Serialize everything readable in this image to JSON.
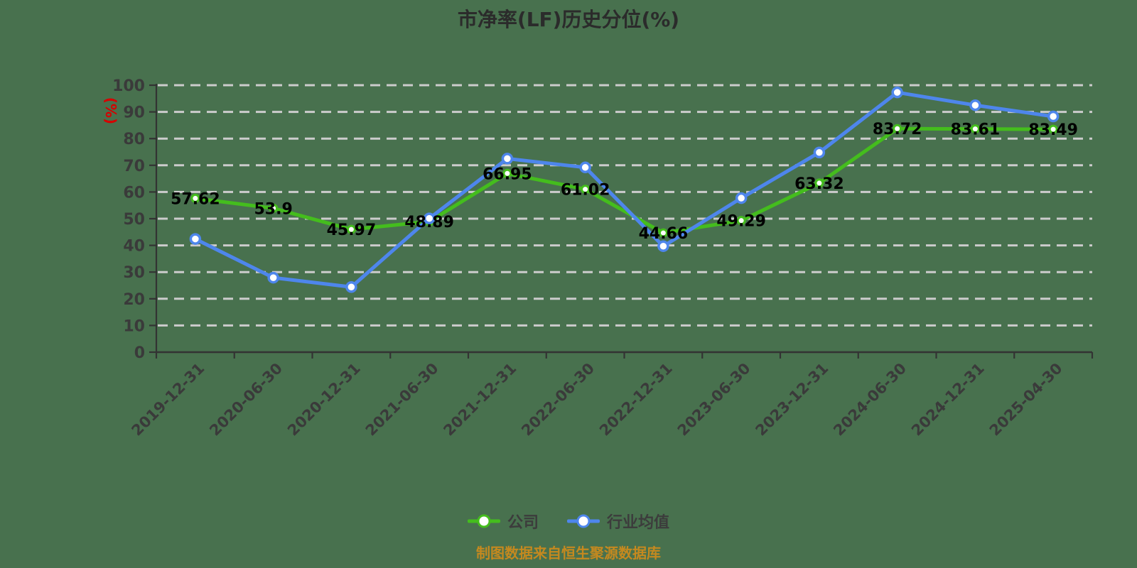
{
  "title": "市净率(LF)历史分位(%)",
  "y_axis_name": "(%)",
  "footer": "制图数据来自恒生聚源数据库",
  "colors": {
    "background": "#48714e",
    "company_green": "#44bd1d",
    "industry_blue": "#4e86ec",
    "gridline": "#cccccc",
    "axis": "#333333",
    "tick_label": "#3a3a3a",
    "data_label": "#000000",
    "title_text": "#2b2b2b",
    "y_axis_name_red": "#d60000",
    "footer_text": "#c5891f",
    "marker_fill": "#ffffff"
  },
  "chart_data": {
    "type": "line",
    "title": "市净率(LF)历史分位(%)",
    "ylabel": "(%)",
    "ylim": [
      0,
      100
    ],
    "y_ticks": [
      0,
      10,
      20,
      30,
      40,
      50,
      60,
      70,
      80,
      90,
      100
    ],
    "grid": "horizontal-dashed",
    "legend_position": "bottom-center",
    "categories": [
      "2019-12-31",
      "2020-06-30",
      "2020-12-31",
      "2021-06-30",
      "2021-12-31",
      "2022-06-30",
      "2022-12-31",
      "2023-06-30",
      "2023-12-31",
      "2024-06-30",
      "2024-12-31",
      "2025-04-30"
    ],
    "series": [
      {
        "name": "公司",
        "color": "#44bd1d",
        "point_style": "white-circle-green-ring",
        "data_labels_shown": true,
        "values": [
          57.62,
          53.9,
          45.97,
          48.89,
          66.95,
          61.02,
          44.66,
          49.29,
          63.32,
          83.72,
          83.61,
          83.49
        ]
      },
      {
        "name": "行业均值",
        "color": "#4e86ec",
        "point_style": "white-circle-blue-ring",
        "data_labels_shown": false,
        "values": [
          42.4,
          27.9,
          24.4,
          50.1,
          72.5,
          69.2,
          39.7,
          57.7,
          74.8,
          97.3,
          92.5,
          88.3
        ]
      }
    ]
  }
}
